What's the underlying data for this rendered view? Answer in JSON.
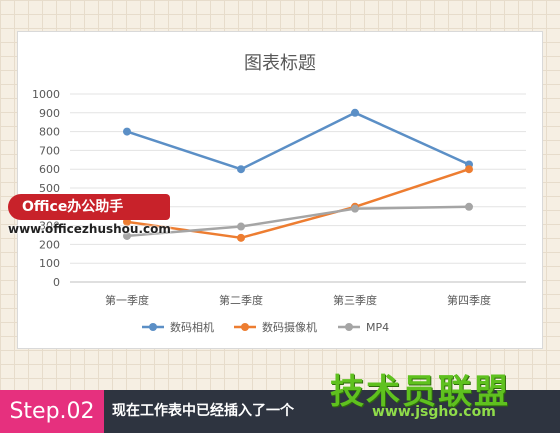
{
  "chart_data": {
    "type": "line",
    "title": "图表标题",
    "categories": [
      "第一季度",
      "第二季度",
      "第三季度",
      "第四季度"
    ],
    "series": [
      {
        "name": "数码相机",
        "color": "#5b8fc6",
        "values": [
          800,
          600,
          900,
          625
        ]
      },
      {
        "name": "数码摄像机",
        "color": "#ed7d31",
        "values": [
          320,
          235,
          400,
          600
        ]
      },
      {
        "name": "MP4",
        "color": "#a5a5a5",
        "values": [
          245,
          295,
          390,
          400
        ]
      }
    ],
    "ylim": [
      0,
      1000
    ],
    "yticks": [
      0,
      100,
      200,
      300,
      400,
      500,
      600,
      700,
      800,
      900,
      1000
    ],
    "grid": true,
    "legend_position": "bottom",
    "xlabel": "",
    "ylabel": ""
  },
  "overlay": {
    "badge": "Office办公助手",
    "badge_url": "www.officezhushou.com"
  },
  "footer": {
    "step": "Step.02",
    "text": "现在工作表中已经插入了一个",
    "logo": "技术员联盟",
    "logo_url": "www.jsgho.com"
  }
}
